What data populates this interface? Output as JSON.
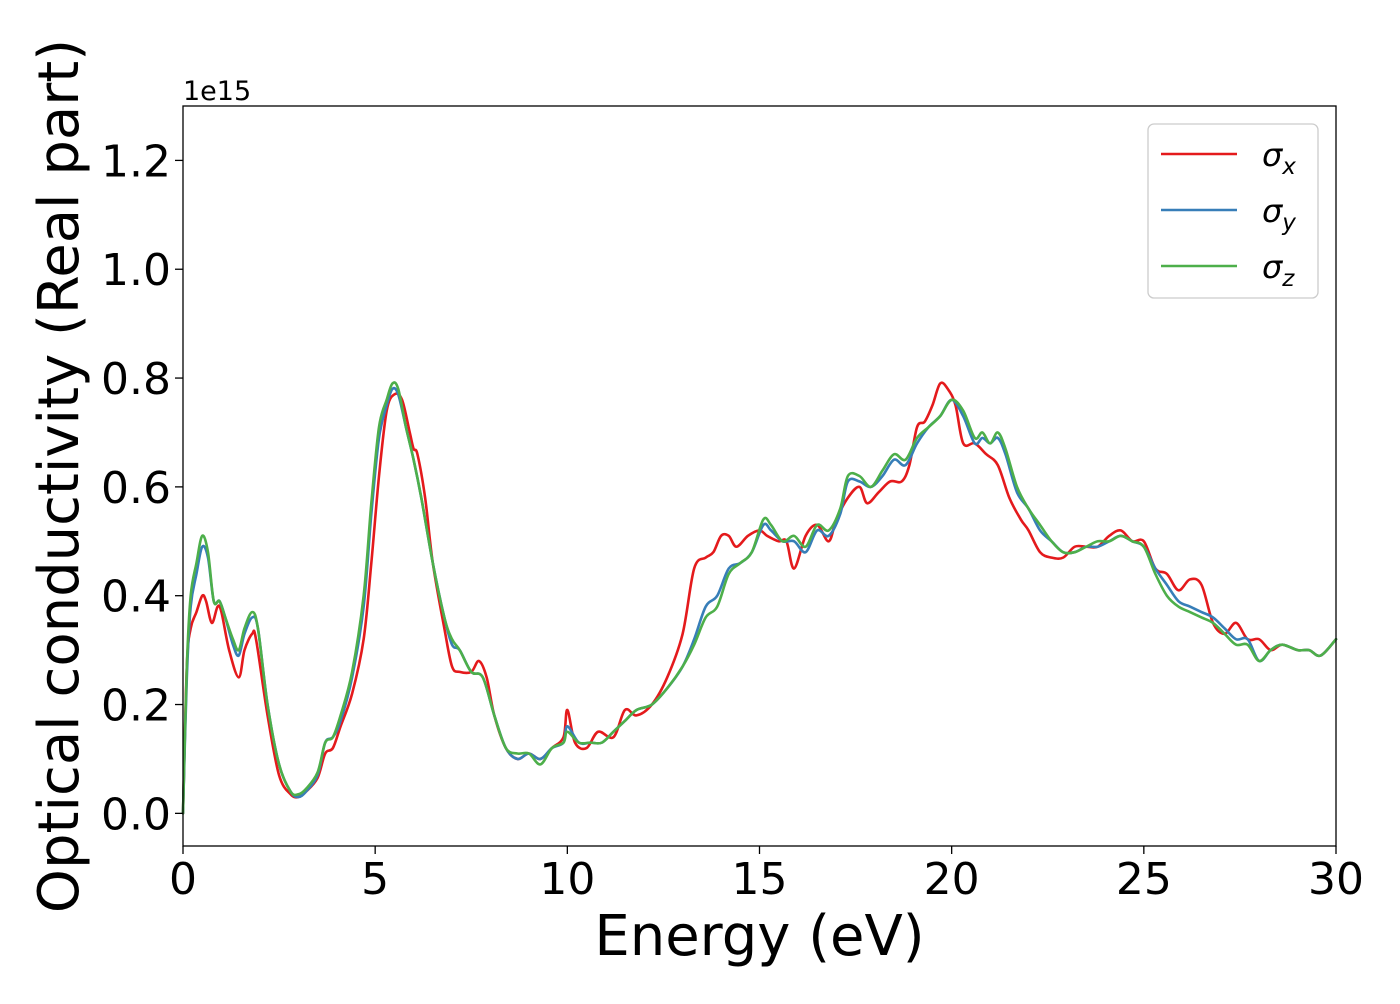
{
  "chart_data": {
    "type": "line",
    "xlabel": "Energy (eV)",
    "ylabel": "Optical conductivity (Real part)",
    "y_offset_label": "1e15",
    "xlim": [
      0,
      30
    ],
    "ylim": [
      -0.06,
      1.3
    ],
    "x_ticks": [
      0,
      5,
      10,
      15,
      20,
      25,
      30
    ],
    "x_tick_labels": [
      "0",
      "5",
      "10",
      "15",
      "20",
      "25",
      "30"
    ],
    "y_ticks": [
      0.0,
      0.2,
      0.4,
      0.6,
      0.8,
      1.0,
      1.2
    ],
    "y_tick_labels": [
      "0.0",
      "0.2",
      "0.4",
      "0.6",
      "0.8",
      "1.0",
      "1.2"
    ],
    "grid": false,
    "legend_position": "top-right",
    "series": [
      {
        "name": "σx",
        "legend_base": "σ",
        "legend_sub": "x",
        "color": "#e41a1c",
        "x": [
          0,
          0.1,
          0.2,
          0.35,
          0.5,
          0.6,
          0.75,
          0.9,
          1.0,
          1.2,
          1.45,
          1.6,
          1.8,
          1.9,
          2.2,
          2.5,
          2.8,
          3.0,
          3.2,
          3.5,
          3.7,
          3.9,
          4.1,
          4.4,
          4.7,
          4.9,
          5.1,
          5.3,
          5.5,
          5.7,
          5.9,
          6.0,
          6.1,
          6.3,
          6.5,
          6.8,
          7.0,
          7.2,
          7.5,
          7.7,
          7.9,
          8.1,
          8.4,
          8.7,
          9.0,
          9.3,
          9.6,
          9.9,
          10.0,
          10.2,
          10.5,
          10.8,
          11.2,
          11.5,
          11.8,
          12.2,
          12.6,
          13.0,
          13.3,
          13.6,
          13.8,
          14.0,
          14.2,
          14.4,
          14.7,
          15.0,
          15.2,
          15.5,
          15.7,
          15.9,
          16.2,
          16.5,
          16.8,
          17.0,
          17.3,
          17.6,
          17.8,
          18.1,
          18.4,
          18.7,
          18.9,
          19.1,
          19.3,
          19.5,
          19.7,
          19.9,
          20.1,
          20.3,
          20.6,
          20.9,
          21.2,
          21.5,
          21.8,
          22.0,
          22.3,
          22.6,
          22.9,
          23.2,
          23.5,
          23.8,
          24.1,
          24.4,
          24.7,
          25.0,
          25.3,
          25.6,
          25.9,
          26.2,
          26.5,
          26.8,
          27.1,
          27.4,
          27.7,
          28.0,
          28.3,
          28.6,
          29.0,
          29.3,
          29.6,
          30.0
        ],
        "y": [
          0.0,
          0.27,
          0.34,
          0.37,
          0.4,
          0.39,
          0.35,
          0.38,
          0.37,
          0.3,
          0.25,
          0.3,
          0.33,
          0.32,
          0.18,
          0.07,
          0.035,
          0.03,
          0.04,
          0.065,
          0.11,
          0.12,
          0.16,
          0.22,
          0.32,
          0.46,
          0.62,
          0.74,
          0.77,
          0.76,
          0.7,
          0.67,
          0.66,
          0.58,
          0.46,
          0.34,
          0.27,
          0.26,
          0.26,
          0.28,
          0.25,
          0.18,
          0.12,
          0.1,
          0.11,
          0.1,
          0.12,
          0.14,
          0.19,
          0.13,
          0.12,
          0.15,
          0.14,
          0.19,
          0.18,
          0.2,
          0.25,
          0.33,
          0.45,
          0.47,
          0.48,
          0.51,
          0.51,
          0.49,
          0.51,
          0.52,
          0.51,
          0.5,
          0.5,
          0.45,
          0.51,
          0.53,
          0.5,
          0.54,
          0.58,
          0.6,
          0.57,
          0.59,
          0.61,
          0.61,
          0.64,
          0.71,
          0.72,
          0.75,
          0.79,
          0.78,
          0.75,
          0.68,
          0.68,
          0.66,
          0.64,
          0.58,
          0.54,
          0.52,
          0.48,
          0.47,
          0.47,
          0.49,
          0.49,
          0.49,
          0.51,
          0.52,
          0.5,
          0.5,
          0.45,
          0.44,
          0.41,
          0.43,
          0.42,
          0.35,
          0.33,
          0.35,
          0.32,
          0.32,
          0.3,
          0.31,
          0.3,
          0.3,
          0.29,
          0.32
        ]
      },
      {
        "name": "σy",
        "legend_base": "σ",
        "legend_sub": "y",
        "color": "#377eb8",
        "x": [
          0,
          0.1,
          0.2,
          0.35,
          0.5,
          0.65,
          0.8,
          0.95,
          1.1,
          1.3,
          1.45,
          1.6,
          1.8,
          1.95,
          2.2,
          2.5,
          2.8,
          3.0,
          3.2,
          3.5,
          3.7,
          3.9,
          4.1,
          4.4,
          4.7,
          4.9,
          5.1,
          5.3,
          5.45,
          5.6,
          5.8,
          6.0,
          6.2,
          6.5,
          6.8,
          7.0,
          7.2,
          7.5,
          7.8,
          8.1,
          8.4,
          8.7,
          9.0,
          9.3,
          9.6,
          9.9,
          10.0,
          10.3,
          10.6,
          10.9,
          11.2,
          11.5,
          11.8,
          12.2,
          12.6,
          13.0,
          13.3,
          13.6,
          13.9,
          14.2,
          14.5,
          14.8,
          15.1,
          15.3,
          15.6,
          15.9,
          16.2,
          16.5,
          16.8,
          17.1,
          17.3,
          17.6,
          17.9,
          18.2,
          18.5,
          18.8,
          19.1,
          19.4,
          19.7,
          20.0,
          20.3,
          20.6,
          20.8,
          21.0,
          21.2,
          21.4,
          21.7,
          22.0,
          22.3,
          22.6,
          22.9,
          23.2,
          23.5,
          23.8,
          24.1,
          24.4,
          24.7,
          25.0,
          25.3,
          25.6,
          25.9,
          26.2,
          26.5,
          26.8,
          27.1,
          27.4,
          27.7,
          28.0,
          28.3,
          28.6,
          29.0,
          29.3,
          29.6,
          30.0
        ],
        "y": [
          0.0,
          0.25,
          0.38,
          0.44,
          0.49,
          0.47,
          0.39,
          0.39,
          0.36,
          0.31,
          0.29,
          0.33,
          0.36,
          0.34,
          0.2,
          0.09,
          0.04,
          0.03,
          0.04,
          0.07,
          0.13,
          0.14,
          0.17,
          0.25,
          0.38,
          0.55,
          0.69,
          0.75,
          0.78,
          0.77,
          0.71,
          0.65,
          0.58,
          0.46,
          0.36,
          0.31,
          0.3,
          0.26,
          0.25,
          0.18,
          0.12,
          0.1,
          0.11,
          0.1,
          0.12,
          0.13,
          0.16,
          0.13,
          0.13,
          0.13,
          0.15,
          0.17,
          0.19,
          0.2,
          0.23,
          0.27,
          0.32,
          0.38,
          0.4,
          0.45,
          0.46,
          0.48,
          0.53,
          0.52,
          0.5,
          0.5,
          0.48,
          0.52,
          0.51,
          0.55,
          0.61,
          0.61,
          0.6,
          0.62,
          0.65,
          0.64,
          0.68,
          0.71,
          0.73,
          0.76,
          0.73,
          0.68,
          0.69,
          0.68,
          0.69,
          0.66,
          0.59,
          0.56,
          0.52,
          0.5,
          0.48,
          0.48,
          0.49,
          0.49,
          0.5,
          0.51,
          0.5,
          0.49,
          0.45,
          0.42,
          0.39,
          0.38,
          0.37,
          0.36,
          0.34,
          0.32,
          0.32,
          0.28,
          0.3,
          0.31,
          0.3,
          0.3,
          0.29,
          0.32
        ]
      },
      {
        "name": "σz",
        "legend_base": "σ",
        "legend_sub": "z",
        "color": "#4daf4a",
        "x": [
          0,
          0.1,
          0.2,
          0.35,
          0.5,
          0.65,
          0.8,
          0.95,
          1.1,
          1.3,
          1.45,
          1.6,
          1.8,
          1.95,
          2.2,
          2.5,
          2.8,
          3.0,
          3.2,
          3.5,
          3.7,
          3.9,
          4.1,
          4.4,
          4.7,
          4.9,
          5.1,
          5.3,
          5.45,
          5.6,
          5.8,
          6.0,
          6.2,
          6.5,
          6.8,
          7.0,
          7.2,
          7.5,
          7.8,
          8.1,
          8.4,
          8.7,
          9.0,
          9.3,
          9.6,
          9.9,
          10.0,
          10.3,
          10.6,
          10.9,
          11.2,
          11.5,
          11.8,
          12.2,
          12.6,
          13.0,
          13.3,
          13.6,
          13.9,
          14.2,
          14.5,
          14.8,
          15.1,
          15.3,
          15.6,
          15.9,
          16.2,
          16.5,
          16.8,
          17.1,
          17.3,
          17.6,
          17.9,
          18.2,
          18.5,
          18.8,
          19.1,
          19.4,
          19.7,
          20.0,
          20.3,
          20.6,
          20.8,
          21.0,
          21.2,
          21.4,
          21.7,
          22.0,
          22.3,
          22.6,
          22.9,
          23.2,
          23.5,
          23.8,
          24.1,
          24.4,
          24.7,
          25.0,
          25.3,
          25.6,
          25.9,
          26.2,
          26.5,
          26.8,
          27.1,
          27.4,
          27.7,
          28.0,
          28.3,
          28.6,
          29.0,
          29.3,
          29.6,
          30.0
        ],
        "y": [
          0.0,
          0.27,
          0.4,
          0.46,
          0.51,
          0.48,
          0.39,
          0.39,
          0.36,
          0.32,
          0.3,
          0.34,
          0.37,
          0.34,
          0.2,
          0.09,
          0.04,
          0.035,
          0.045,
          0.075,
          0.13,
          0.14,
          0.18,
          0.26,
          0.4,
          0.57,
          0.71,
          0.76,
          0.79,
          0.78,
          0.71,
          0.65,
          0.58,
          0.46,
          0.36,
          0.32,
          0.3,
          0.26,
          0.25,
          0.18,
          0.12,
          0.11,
          0.11,
          0.09,
          0.12,
          0.13,
          0.15,
          0.13,
          0.13,
          0.13,
          0.15,
          0.17,
          0.19,
          0.2,
          0.23,
          0.27,
          0.31,
          0.36,
          0.38,
          0.44,
          0.46,
          0.48,
          0.54,
          0.53,
          0.5,
          0.51,
          0.49,
          0.53,
          0.52,
          0.56,
          0.62,
          0.62,
          0.6,
          0.63,
          0.66,
          0.65,
          0.69,
          0.71,
          0.73,
          0.76,
          0.74,
          0.69,
          0.7,
          0.68,
          0.7,
          0.67,
          0.6,
          0.56,
          0.53,
          0.5,
          0.48,
          0.48,
          0.49,
          0.5,
          0.5,
          0.51,
          0.5,
          0.49,
          0.44,
          0.4,
          0.38,
          0.37,
          0.36,
          0.35,
          0.33,
          0.31,
          0.31,
          0.28,
          0.3,
          0.31,
          0.3,
          0.3,
          0.29,
          0.32
        ]
      }
    ]
  }
}
